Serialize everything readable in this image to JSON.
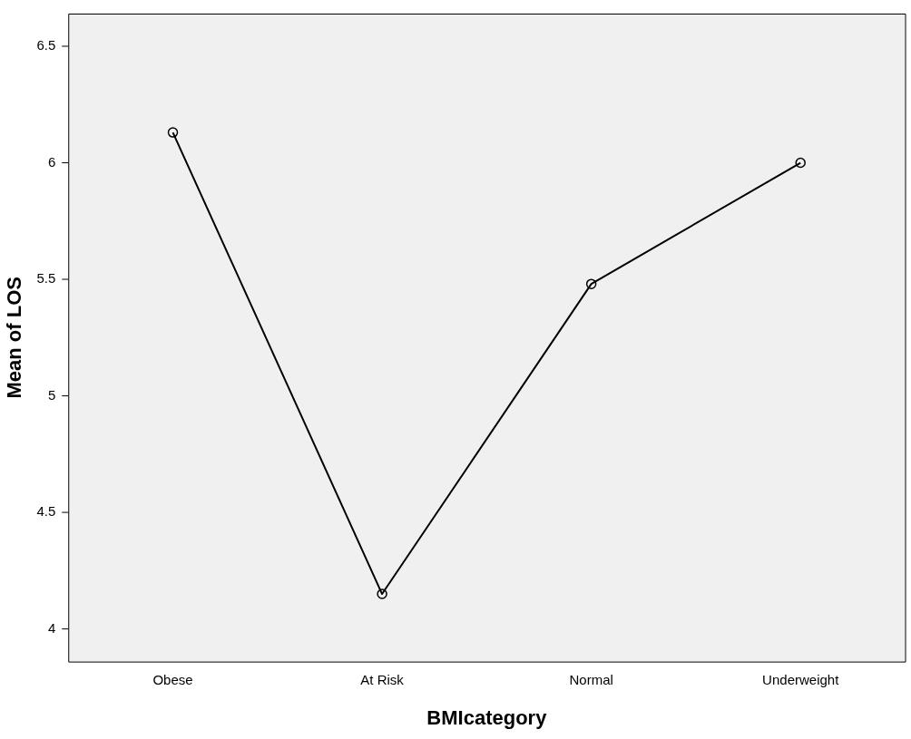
{
  "chart_data": {
    "type": "line",
    "xlabel": "BMIcategory",
    "ylabel": "Mean of LOS",
    "categories": [
      "Obese",
      "At Risk",
      "Normal",
      "Underweight"
    ],
    "series": [
      {
        "color": "#000000",
        "values": [
          6.13,
          4.15,
          5.48,
          6.0
        ]
      }
    ],
    "ylim": [
      3.86,
      6.64
    ],
    "yticks": [
      4,
      4.5,
      5,
      5.5,
      6,
      6.5
    ],
    "grid": false,
    "legend": false,
    "marker": "circle",
    "line_style": "solid"
  }
}
